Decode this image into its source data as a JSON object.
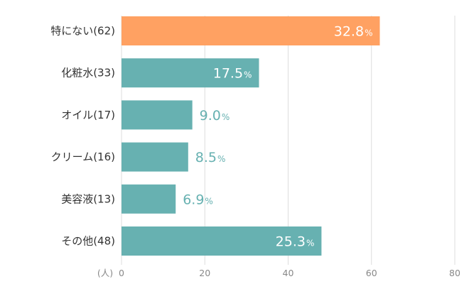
{
  "chart_data": {
    "type": "bar",
    "orientation": "horizontal",
    "categories": [
      "特にない(62)",
      "化粧水(33)",
      "オイル(17)",
      "クリーム(16)",
      "美容液(13)",
      "その他(48)"
    ],
    "values": [
      62,
      33,
      17,
      16,
      13,
      48
    ],
    "percent_labels": [
      "32.8",
      "17.5",
      "9.0",
      "8.5",
      "6.9",
      "25.3"
    ],
    "percent_sign": "%",
    "x_unit_label": "(人)",
    "x_ticks": [
      "0",
      "20",
      "40",
      "60",
      "80"
    ],
    "xlim": [
      0,
      80
    ],
    "grid": true,
    "colors": {
      "highlight": "#FFA162",
      "bar": "#67B1B1",
      "grid": "#DDDDDD",
      "label_inside": "#FFFFFF",
      "label_outside": "#67B1B1"
    },
    "highlight_index": 0
  }
}
